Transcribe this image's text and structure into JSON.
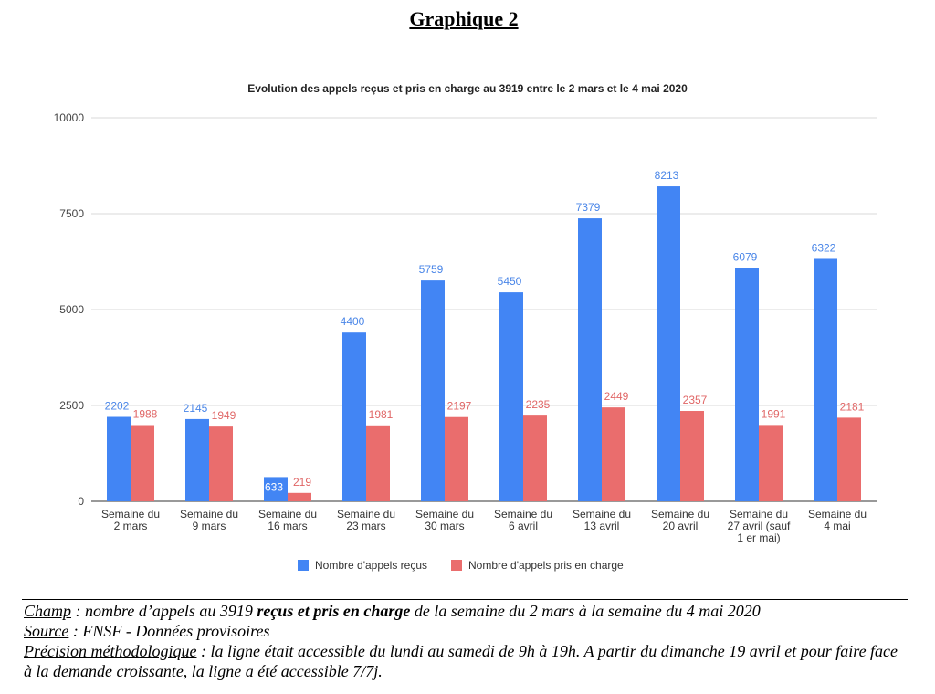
{
  "heading": "Graphique 2",
  "colors": {
    "recus": "#4285f4",
    "pris": "#ea6d6d",
    "grid": "#d9d9d9",
    "axis": "#333333"
  },
  "chart_data": {
    "type": "bar",
    "title": "Evolution des appels reçus et pris en charge au 3919 entre le 2 mars et le 4 mai 2020",
    "categories": [
      [
        "Semaine du",
        "2 mars"
      ],
      [
        "Semaine du",
        "9 mars"
      ],
      [
        "Semaine du",
        "16 mars"
      ],
      [
        "Semaine du",
        "23 mars"
      ],
      [
        "Semaine du",
        "30 mars"
      ],
      [
        "Semaine du",
        "6 avril"
      ],
      [
        "Semaine du",
        "13 avril"
      ],
      [
        "Semaine du",
        "20 avril"
      ],
      [
        "Semaine du",
        "27 avril (sauf",
        "1 er mai)"
      ],
      [
        "Semaine du",
        "4 mai"
      ]
    ],
    "series": [
      {
        "name": "Nombre d'appels reçus",
        "values": [
          2202,
          2145,
          633,
          4400,
          5759,
          5450,
          7379,
          8213,
          6079,
          6322
        ]
      },
      {
        "name": "Nombre d'appels pris en charge",
        "values": [
          1988,
          1949,
          219,
          1981,
          2197,
          2235,
          2449,
          2357,
          1991,
          2181
        ]
      }
    ],
    "yticks": [
      0,
      2500,
      5000,
      7500,
      10000
    ],
    "ylim": [
      0,
      10000
    ],
    "grid": true,
    "legend_position": "bottom"
  },
  "footnote": {
    "champ_label": "Champ",
    "champ_text_1": " : nombre d’appels au 3919 ",
    "champ_bold": "reçus et pris en charge",
    "champ_text_2": " de la semaine du 2 mars à la semaine du 4 mai 2020",
    "source_label": "Source",
    "source_text": " : FNSF - Données provisoires",
    "precision_label": "Précision méthodologique",
    "precision_text": " : la ligne était accessible du lundi au samedi de 9h à 19h. A partir du dimanche 19 avril et pour faire face à la demande croissante, la ligne a été accessible 7/7j."
  }
}
